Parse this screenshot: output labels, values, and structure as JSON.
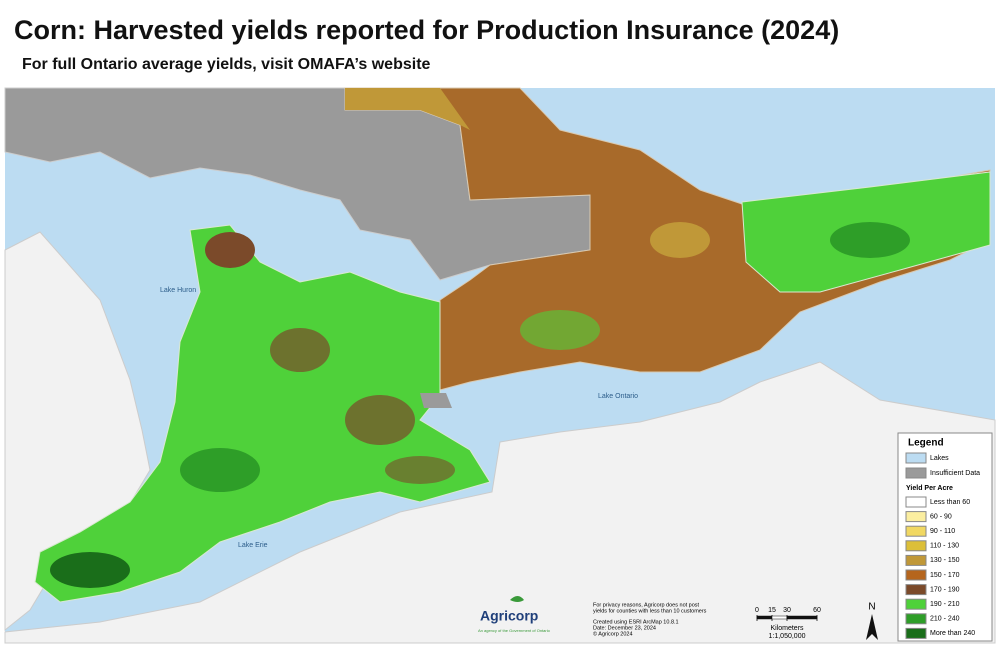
{
  "header": {
    "title": "Corn: Harvested yields reported for Production Insurance (2024)",
    "subtitle": "For full Ontario average yields, visit OMAFA’s website"
  },
  "map": {
    "lake_labels": [
      "Lake Huron",
      "Lake Ontario",
      "Lake Erie"
    ]
  },
  "legend": {
    "title": "Legend",
    "categories": [
      {
        "label": "Lakes",
        "color": "#bcdcf2"
      },
      {
        "label": "Insufficient Data",
        "color": "#9a9a9a"
      }
    ],
    "yield_heading": "Yield Per Acre",
    "yield_classes": [
      {
        "label": "Less than 60",
        "color": "#ffffff"
      },
      {
        "label": "60 - 90",
        "color": "#fbeea0"
      },
      {
        "label": "90 - 110",
        "color": "#f1d862"
      },
      {
        "label": "110 - 130",
        "color": "#dcbf38"
      },
      {
        "label": "130 - 150",
        "color": "#c09838"
      },
      {
        "label": "150 - 170",
        "color": "#b5651d"
      },
      {
        "label": "170 - 190",
        "color": "#7b4a2a"
      },
      {
        "label": "190 - 210",
        "color": "#4fd13a"
      },
      {
        "label": "210 - 240",
        "color": "#2e9e28"
      },
      {
        "label": "More than 240",
        "color": "#1a6e1a"
      }
    ]
  },
  "logo": {
    "name": "Agricorp",
    "tagline": "An agency of the Government of Ontario"
  },
  "notes": [
    "For privacy reasons, Agricorp does not post",
    "yields for counties with less than 10 customers",
    "Created using ESRI ArcMap 10.8.1",
    "Date: December 23, 2024",
    "© Agricorp 2024"
  ],
  "scale": {
    "ticks": [
      0,
      15,
      30,
      60
    ],
    "unit": "Kilometers",
    "ratio": "1:1,050,000"
  },
  "north": "N"
}
